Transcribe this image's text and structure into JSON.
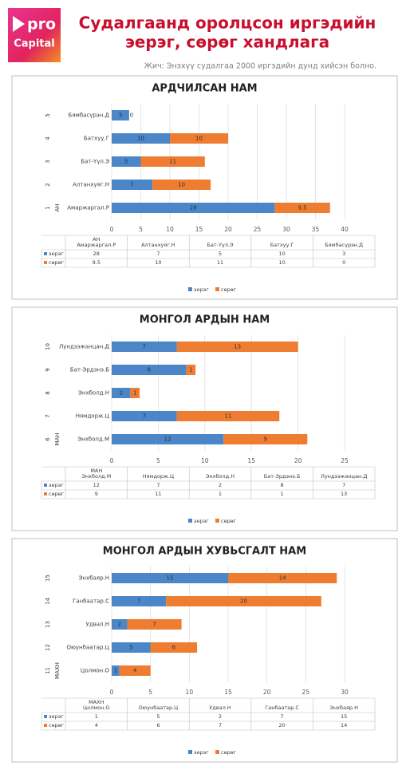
{
  "header": {
    "logo_pro": "pro",
    "logo_capital": "Capital",
    "title_lines": [
      "Судалгаанд оролцсон иргэдийн",
      "эерэг, сөрөг хандлага"
    ],
    "subtitle": "Жич: Энэхүү судалгаа 2000 иргэдийн дунд хийсэн болно."
  },
  "chart_data": [
    {
      "type": "bar",
      "orientation": "horizontal",
      "stacked": true,
      "title": "АРДЧИЛСАН НАМ",
      "group_label": "АН",
      "row_labels": [
        "1",
        "2",
        "3",
        "4",
        "5"
      ],
      "categories": [
        "Амаржаргал.Р",
        "Алтанхуяг.Н",
        "Бат-Үүл.Э",
        "Батхуу.Г",
        "Бямбасүрэн.Д"
      ],
      "series": [
        {
          "name": "эерэг",
          "color": "#4a86c8",
          "values": [
            28,
            7,
            5,
            10,
            3
          ]
        },
        {
          "name": "сөрөг",
          "color": "#ee7d31",
          "values": [
            9.5,
            10,
            11,
            10,
            0
          ]
        }
      ],
      "xlim": [
        0,
        40
      ],
      "xticks": [
        0,
        5,
        10,
        15,
        20,
        25,
        30,
        35,
        40
      ],
      "grid": true,
      "legend": "bottom"
    },
    {
      "type": "bar",
      "orientation": "horizontal",
      "stacked": true,
      "title": "МОНГОЛ АРДЫН НАМ",
      "group_label": "МАН",
      "row_labels": [
        "6",
        "7",
        "8",
        "9",
        "10"
      ],
      "categories": [
        "Энхболд.М",
        "Нямдорж.Ц",
        "Энхболд.Н",
        "Бат-Эрдэнэ.Б",
        "Лундээжанцан.Д"
      ],
      "series": [
        {
          "name": "эерэг",
          "color": "#4a86c8",
          "values": [
            12,
            7,
            2,
            8,
            7
          ]
        },
        {
          "name": "сөрөг",
          "color": "#ee7d31",
          "values": [
            9,
            11,
            1,
            1,
            13
          ]
        }
      ],
      "xlim": [
        0,
        25
      ],
      "xticks": [
        0,
        5,
        10,
        15,
        20,
        25
      ],
      "grid": true,
      "legend": "bottom"
    },
    {
      "type": "bar",
      "orientation": "horizontal",
      "stacked": true,
      "title": "МОНГОЛ АРДЫН ХУВЬСГАЛТ НАМ",
      "group_label": "МАХН",
      "row_labels": [
        "11",
        "12",
        "13",
        "14",
        "15"
      ],
      "categories": [
        "Цолмон.О",
        "Оюунбаатар.Ц",
        "Удвал.Н",
        "Ганбаатар.С",
        "Энхбаяр.Н"
      ],
      "series": [
        {
          "name": "эерэг",
          "color": "#4a86c8",
          "values": [
            1,
            5,
            2,
            7,
            15
          ]
        },
        {
          "name": "сөрөг",
          "color": "#ee7d31",
          "values": [
            4,
            6,
            7,
            20,
            14
          ]
        }
      ],
      "xlim": [
        0,
        30
      ],
      "xticks": [
        0,
        5,
        10,
        15,
        20,
        25,
        30
      ],
      "grid": true,
      "legend": "bottom"
    }
  ]
}
